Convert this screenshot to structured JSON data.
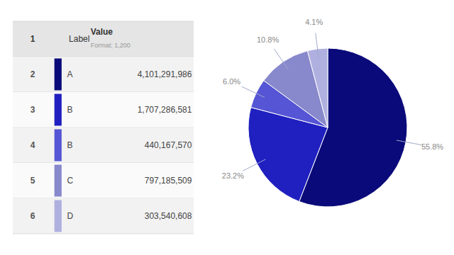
{
  "chart_data": [
    {
      "type": "table",
      "header": [
        "1",
        "Label",
        "Value"
      ],
      "subtitle": "Format: 1,200",
      "row_labels": [
        "2",
        "3",
        "4",
        "5",
        "6"
      ],
      "categories": [
        "A",
        "B",
        "B",
        "C",
        "D"
      ],
      "values": [
        4101291986,
        1707286581,
        440167570,
        797185509,
        303540608
      ],
      "value_labels": [
        "4,101,291,986",
        "1,707,286,581",
        "440,167,570",
        "797,185,509",
        "303,540,608"
      ],
      "colors": [
        "#0a0a7a",
        "#2020c0",
        "#5555d5",
        "#8888cc",
        "#b0b0e0"
      ]
    },
    {
      "type": "pie",
      "values": [
        55.8,
        23.2,
        6.0,
        10.8,
        4.1
      ],
      "value_labels": [
        "55.8%",
        "23.2%",
        "6.0%",
        "10.8%",
        "4.1%"
      ],
      "colors": [
        "#0a0a7a",
        "#2020c0",
        "#5555d5",
        "#8888cc",
        "#b0b0e0"
      ]
    }
  ]
}
